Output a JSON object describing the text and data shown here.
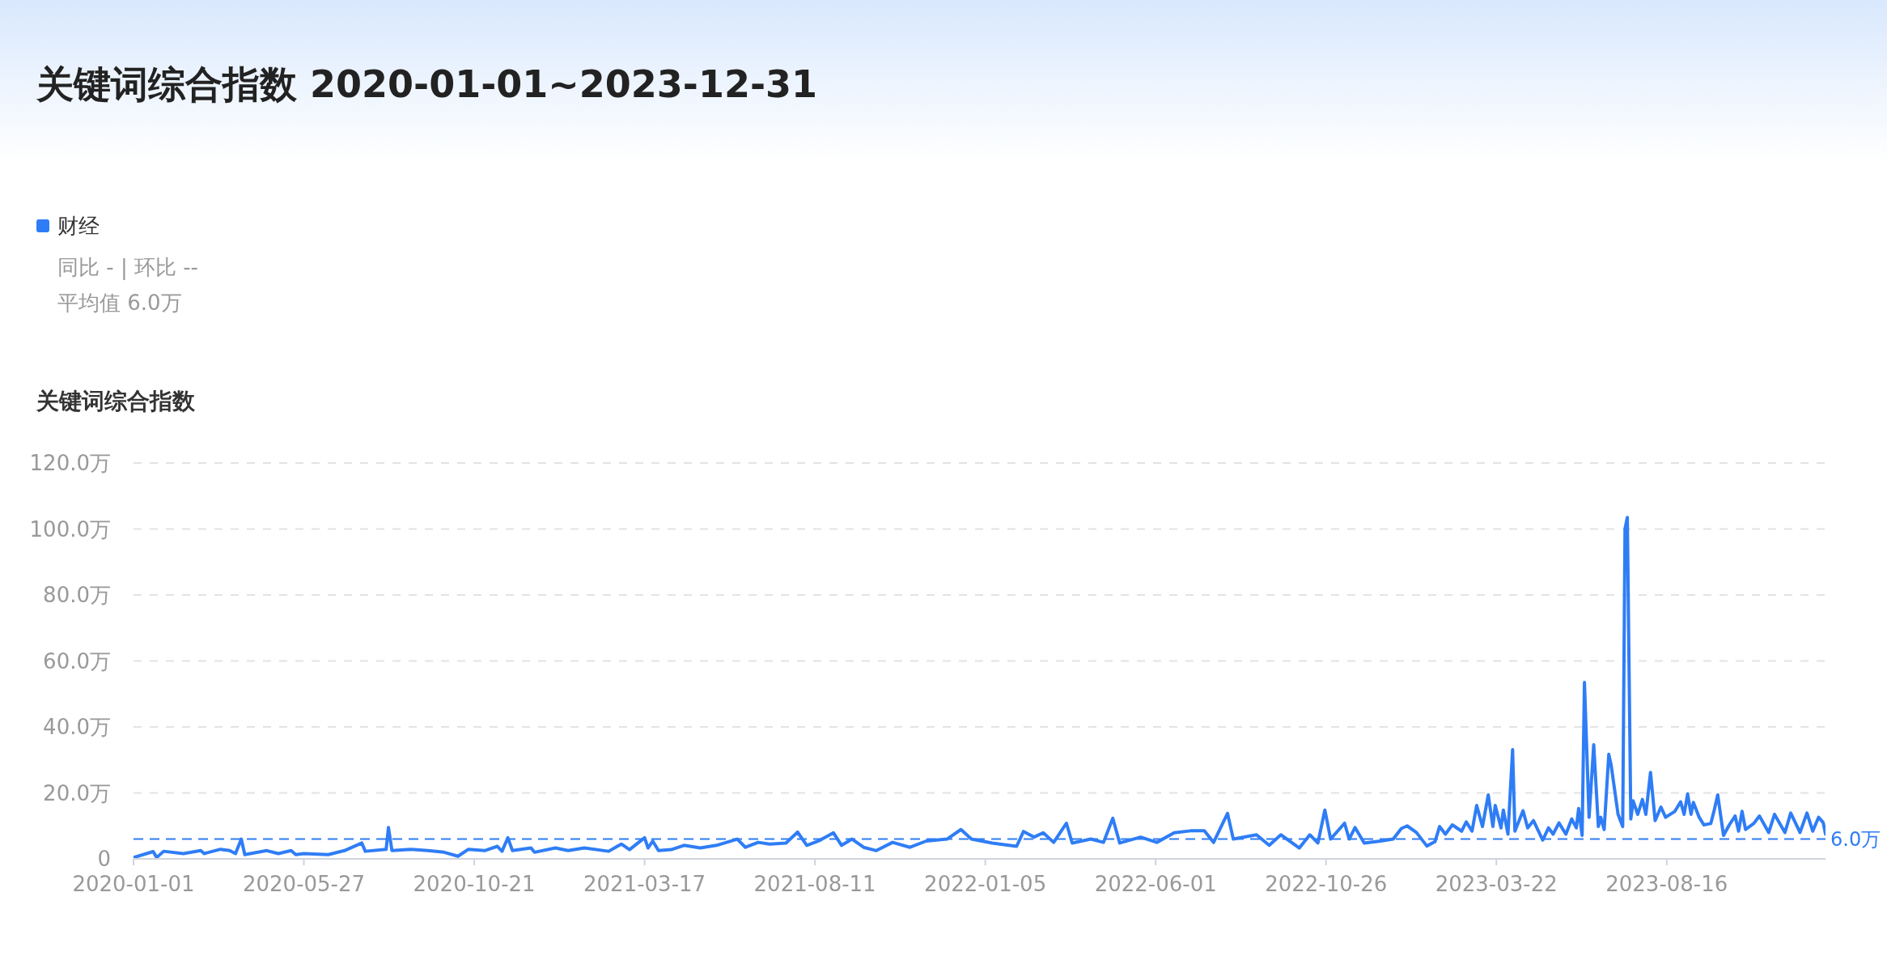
{
  "chart_data": {
    "type": "line",
    "title": "关键词综合指数 2020-01-01~2023-12-31",
    "ylabel": "关键词综合指数",
    "annotations": [
      "同比 - | 环比 --",
      "平均值 6.0万"
    ],
    "legend": "top left",
    "grid": "y",
    "xlim": [
      "2020-01-01",
      "2023-12-31"
    ],
    "xticks": [
      "2020-01-01",
      "2020-05-27",
      "2020-10-21",
      "2021-03-17",
      "2021-08-11",
      "2022-01-05",
      "2022-06-01",
      "2022-10-26",
      "2023-03-22",
      "2023-08-16"
    ],
    "ylim": [
      0,
      120
    ],
    "yticks": [
      0,
      {
        "value": 20,
        "label": "20.0万"
      },
      {
        "value": 40,
        "label": "40.0万"
      },
      {
        "value": 60,
        "label": "60.0万"
      },
      {
        "value": 80,
        "label": "80.0万"
      },
      {
        "value": 100,
        "label": "100.0万"
      },
      {
        "value": 120,
        "label": "120.0万"
      }
    ],
    "ref_lines": [
      {
        "axis": "y",
        "value": 6.0,
        "label": "6.0万",
        "color": "#2f7df6",
        "line_style": "dashed"
      }
    ],
    "x": [
      "2020-01-01",
      "2020-01-18",
      "2020-01-21",
      "2020-01-27",
      "2020-02-13",
      "2020-02-28",
      "2020-03-02",
      "2020-03-16",
      "2020-03-24",
      "2020-03-29",
      "2020-04-03",
      "2020-04-06",
      "2020-04-25",
      "2020-05-05",
      "2020-05-16",
      "2020-05-20",
      "2020-05-27",
      "2020-06-17",
      "2020-07-01",
      "2020-07-16",
      "2020-07-19",
      "2020-08-06",
      "2020-08-08",
      "2020-08-11",
      "2020-08-27",
      "2020-09-11",
      "2020-09-25",
      "2020-10-07",
      "2020-10-16",
      "2020-10-30",
      "2020-11-10",
      "2020-11-14",
      "2020-11-19",
      "2020-11-23",
      "2020-12-09",
      "2020-12-12",
      "2020-12-30",
      "2021-01-10",
      "2021-01-24",
      "2021-02-14",
      "2021-02-25",
      "2021-03-04",
      "2021-03-17",
      "2021-03-20",
      "2021-03-24",
      "2021-03-29",
      "2021-04-09",
      "2021-04-20",
      "2021-05-04",
      "2021-05-18",
      "2021-06-05",
      "2021-06-12",
      "2021-06-23",
      "2021-07-03",
      "2021-07-17",
      "2021-07-27",
      "2021-08-04",
      "2021-08-14",
      "2021-08-27",
      "2021-09-03",
      "2021-09-12",
      "2021-09-22",
      "2021-10-03",
      "2021-10-17",
      "2021-11-01",
      "2021-11-15",
      "2021-12-03",
      "2021-12-15",
      "2021-12-24",
      "2022-01-11",
      "2022-02-01",
      "2022-02-07",
      "2022-02-16",
      "2022-02-24",
      "2022-03-05",
      "2022-03-16",
      "2022-03-21",
      "2022-04-06",
      "2022-04-17",
      "2022-04-25",
      "2022-05-01",
      "2022-05-19",
      "2022-06-02",
      "2022-06-17",
      "2022-07-01",
      "2022-07-13",
      "2022-07-21",
      "2022-08-02",
      "2022-08-07",
      "2022-08-27",
      "2022-09-07",
      "2022-09-17",
      "2022-10-03",
      "2022-10-12",
      "2022-10-19",
      "2022-10-25",
      "2022-10-30",
      "2022-11-11",
      "2022-11-15",
      "2022-11-20",
      "2022-11-28",
      "2022-12-12",
      "2022-12-23",
      "2022-12-30",
      "2023-01-04",
      "2023-01-12",
      "2023-01-21",
      "2023-01-28",
      "2023-02-01",
      "2023-02-06",
      "2023-02-12",
      "2023-02-20",
      "2023-02-24",
      "2023-03-01",
      "2023-03-05",
      "2023-03-10",
      "2023-03-15",
      "2023-03-19",
      "2023-03-21",
      "2023-03-26",
      "2023-03-28",
      "2023-04-01",
      "2023-04-05",
      "2023-04-07",
      "2023-04-14",
      "2023-04-18",
      "2023-04-23",
      "2023-05-01",
      "2023-05-06",
      "2023-05-10",
      "2023-05-15",
      "2023-05-21",
      "2023-05-26",
      "2023-05-30",
      "2023-06-01",
      "2023-06-04",
      "2023-06-06",
      "2023-06-10",
      "2023-06-14",
      "2023-06-18",
      "2023-06-20",
      "2023-06-23",
      "2023-06-27",
      "2023-06-29",
      "2023-07-05",
      "2023-07-09",
      "2023-07-11",
      "2023-07-13",
      "2023-07-16",
      "2023-07-18",
      "2023-07-22",
      "2023-07-26",
      "2023-07-29",
      "2023-08-02",
      "2023-08-06",
      "2023-08-11",
      "2023-08-15",
      "2023-08-23",
      "2023-08-28",
      "2023-08-31",
      "2023-09-03",
      "2023-09-06",
      "2023-09-08",
      "2023-09-13",
      "2023-09-17",
      "2023-09-23",
      "2023-09-26",
      "2023-09-29",
      "2023-10-04",
      "2023-10-09",
      "2023-10-14",
      "2023-10-17",
      "2023-10-20",
      "2023-10-23",
      "2023-10-30",
      "2023-11-04",
      "2023-11-12",
      "2023-11-17",
      "2023-11-26",
      "2023-12-01",
      "2023-12-09",
      "2023-12-15",
      "2023-12-20",
      "2023-12-25",
      "2023-12-29",
      "2023-12-31"
    ],
    "series": [
      {
        "name": "财经",
        "color": "#2f7df6",
        "values": [
          0.4,
          2.2,
          0.4,
          2.3,
          1.6,
          2.5,
          1.6,
          2.9,
          2.5,
          1.6,
          6.0,
          1.3,
          2.5,
          1.6,
          2.5,
          1.3,
          1.6,
          1.3,
          2.5,
          4.8,
          2.3,
          2.9,
          9.5,
          2.5,
          2.9,
          2.5,
          2.0,
          0.8,
          2.9,
          2.5,
          3.8,
          2.3,
          6.4,
          2.5,
          3.3,
          2.0,
          3.3,
          2.5,
          3.3,
          2.3,
          4.5,
          2.8,
          6.4,
          3.3,
          5.4,
          2.5,
          2.8,
          4.1,
          3.3,
          4.1,
          6.0,
          3.5,
          5.0,
          4.5,
          4.8,
          8.1,
          4.1,
          5.4,
          7.9,
          4.1,
          6.0,
          3.5,
          2.5,
          5.0,
          3.5,
          5.4,
          6.0,
          8.9,
          6.0,
          4.8,
          3.8,
          8.3,
          6.6,
          7.9,
          5.0,
          10.8,
          4.8,
          6.0,
          5.0,
          12.3,
          4.8,
          6.6,
          5.0,
          7.9,
          8.5,
          8.5,
          5.0,
          13.8,
          6.0,
          7.3,
          4.1,
          7.3,
          3.3,
          7.3,
          4.8,
          14.8,
          6.0,
          10.8,
          6.0,
          9.5,
          4.8,
          5.4,
          6.0,
          9.2,
          10.0,
          8.0,
          3.9,
          5.2,
          9.8,
          7.5,
          10.3,
          8.4,
          11.2,
          8.4,
          16.2,
          9.8,
          19.4,
          9.8,
          16.2,
          9.4,
          14.8,
          7.5,
          33.1,
          8.4,
          14.6,
          9.4,
          11.6,
          5.7,
          9.4,
          7.5,
          10.9,
          7.5,
          12.1,
          9.4,
          15.3,
          7.1,
          53.5,
          12.6,
          34.6,
          9.8,
          12.6,
          8.9,
          31.7,
          28.5,
          13.5,
          9.8,
          100,
          103.5,
          12.1,
          17.6,
          13.5,
          18.0,
          13.5,
          26.2,
          11.6,
          15.7,
          12.6,
          14.4,
          17.3,
          13.5,
          19.7,
          13.5,
          17.1,
          12.6,
          10.3,
          10.7,
          14.8,
          19.4,
          7.1,
          10.3,
          13.0,
          8.4,
          14.4,
          8.9,
          10.7,
          13.0,
          8.0,
          13.5,
          8.0,
          13.9,
          8.0,
          13.9,
          8.4,
          12.6,
          11.0,
          7.5
        ]
      }
    ]
  }
}
